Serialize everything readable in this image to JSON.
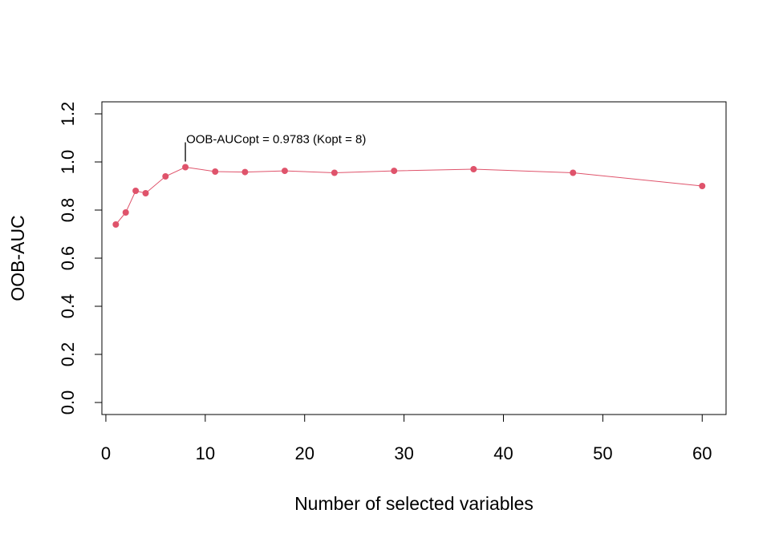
{
  "chart_data": {
    "type": "line",
    "xlabel": "Number of selected variables",
    "ylabel": "OOB-AUC",
    "xlim": [
      -0.4,
      62.4
    ],
    "ylim": [
      -0.05,
      1.25
    ],
    "x_ticks": [
      0,
      10,
      20,
      30,
      40,
      50,
      60
    ],
    "y_ticks": [
      0.0,
      0.2,
      0.4,
      0.6,
      0.8,
      1.0,
      1.2
    ],
    "y_tick_labels": [
      "0.0",
      "0.2",
      "0.4",
      "0.6",
      "0.8",
      "1.0",
      "1.2"
    ],
    "series": [
      {
        "color": "#DF536B",
        "x": [
          1,
          2,
          3,
          4,
          6,
          8,
          11,
          14,
          18,
          23,
          29,
          37,
          47,
          60
        ],
        "y": [
          0.74,
          0.79,
          0.88,
          0.87,
          0.94,
          0.9783,
          0.96,
          0.958,
          0.963,
          0.955,
          0.963,
          0.97,
          0.955,
          0.9
        ]
      }
    ],
    "annotation": {
      "text": "OOB-AUCopt = 0.9783 (Kopt = 8)",
      "x": 8,
      "y": 0.9783
    },
    "grid": false,
    "legend": "none"
  }
}
